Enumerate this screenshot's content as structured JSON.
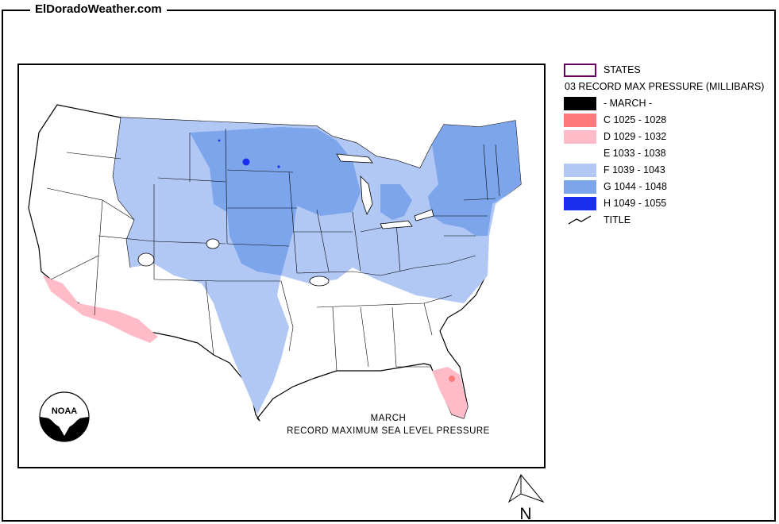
{
  "header": {
    "site_title": "ElDoradoWeather.com"
  },
  "map": {
    "caption_line1": "MARCH",
    "caption_line2": "RECORD  MAXIMUM  SEA LEVEL PRESSURE",
    "logo_text": "NOAA"
  },
  "legend": {
    "states_label": "STATES",
    "layer_title": "03 RECORD MAX PRESSURE (MILLIBARS)",
    "items": [
      {
        "label": "- MARCH -",
        "color": "#000000"
      },
      {
        "label": "C 1025 - 1028",
        "color": "#ff7a7a"
      },
      {
        "label": "D 1029 - 1032",
        "color": "#ffbcc8"
      },
      {
        "label": "E 1033 - 1038",
        "color": "#ffffff"
      },
      {
        "label": "F 1039 - 1043",
        "color": "#b1c8f5"
      },
      {
        "label": "G 1044 - 1048",
        "color": "#7da5ec"
      },
      {
        "label": "H 1049 - 1055",
        "color": "#1a2ef0"
      }
    ],
    "title_label": "TITLE"
  },
  "north_arrow": {
    "label": "N"
  }
}
